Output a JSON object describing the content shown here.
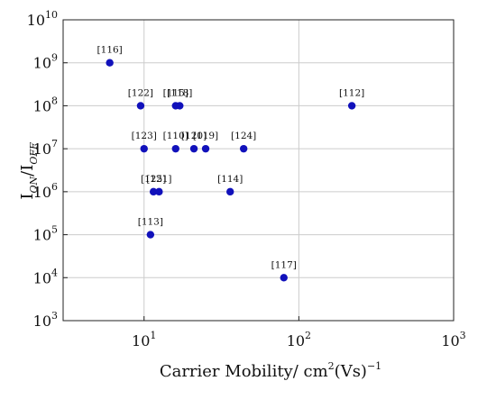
{
  "chart_data": {
    "type": "scatter",
    "x_scale": "log",
    "y_scale": "log",
    "xlim": [
      3,
      1000
    ],
    "ylim": [
      1000,
      10000000000
    ],
    "grid": true,
    "xlabel": "Carrier Mobility/ cm²(Vs)⁻¹",
    "xlabel_parts": {
      "main": "Carrier Mobility/ cm",
      "sup1": "2",
      "mid": "(Vs)",
      "sup2": "−1"
    },
    "ylabel": "I_ON/I_OFF",
    "ylabel_parts": {
      "i1": "I",
      "sub1": "ON",
      "slash": "/I",
      "sub2": "OFF"
    },
    "x_ticks": [
      {
        "value": 10,
        "base": "10",
        "exp": "1"
      },
      {
        "value": 100,
        "base": "10",
        "exp": "2"
      },
      {
        "value": 1000,
        "base": "10",
        "exp": "3"
      }
    ],
    "y_ticks": [
      {
        "value": 1000,
        "base": "10",
        "exp": "3"
      },
      {
        "value": 10000,
        "base": "10",
        "exp": "4"
      },
      {
        "value": 100000,
        "base": "10",
        "exp": "5"
      },
      {
        "value": 1000000,
        "base": "10",
        "exp": "6"
      },
      {
        "value": 10000000,
        "base": "10",
        "exp": "7"
      },
      {
        "value": 100000000,
        "base": "10",
        "exp": "8"
      },
      {
        "value": 1000000000,
        "base": "10",
        "exp": "9"
      },
      {
        "value": 10000000000,
        "base": "10",
        "exp": "10"
      }
    ],
    "marker_color": "#1111bb",
    "grid_color": "#cccccc",
    "points": [
      {
        "label": "[116]",
        "x": 6,
        "y": 1000000000
      },
      {
        "label": "[122]",
        "x": 9.5,
        "y": 100000000
      },
      {
        "label": "[115]",
        "x": 16,
        "y": 100000000
      },
      {
        "label": "[118]",
        "x": 17,
        "y": 100000000
      },
      {
        "label": "[112]",
        "x": 220,
        "y": 100000000
      },
      {
        "label": "[123]",
        "x": 10,
        "y": 10000000
      },
      {
        "label": "[110]",
        "x": 16,
        "y": 10000000
      },
      {
        "label": "[120]",
        "x": 21,
        "y": 10000000
      },
      {
        "label": "[119]",
        "x": 25,
        "y": 10000000
      },
      {
        "label": "[124]",
        "x": 44,
        "y": 10000000
      },
      {
        "label": "[125]",
        "x": 11.5,
        "y": 1000000
      },
      {
        "label": "[121]",
        "x": 12.5,
        "y": 1000000
      },
      {
        "label": "[114]",
        "x": 36,
        "y": 1000000
      },
      {
        "label": "[113]",
        "x": 11,
        "y": 100000
      },
      {
        "label": "[117]",
        "x": 80,
        "y": 10000
      }
    ]
  }
}
